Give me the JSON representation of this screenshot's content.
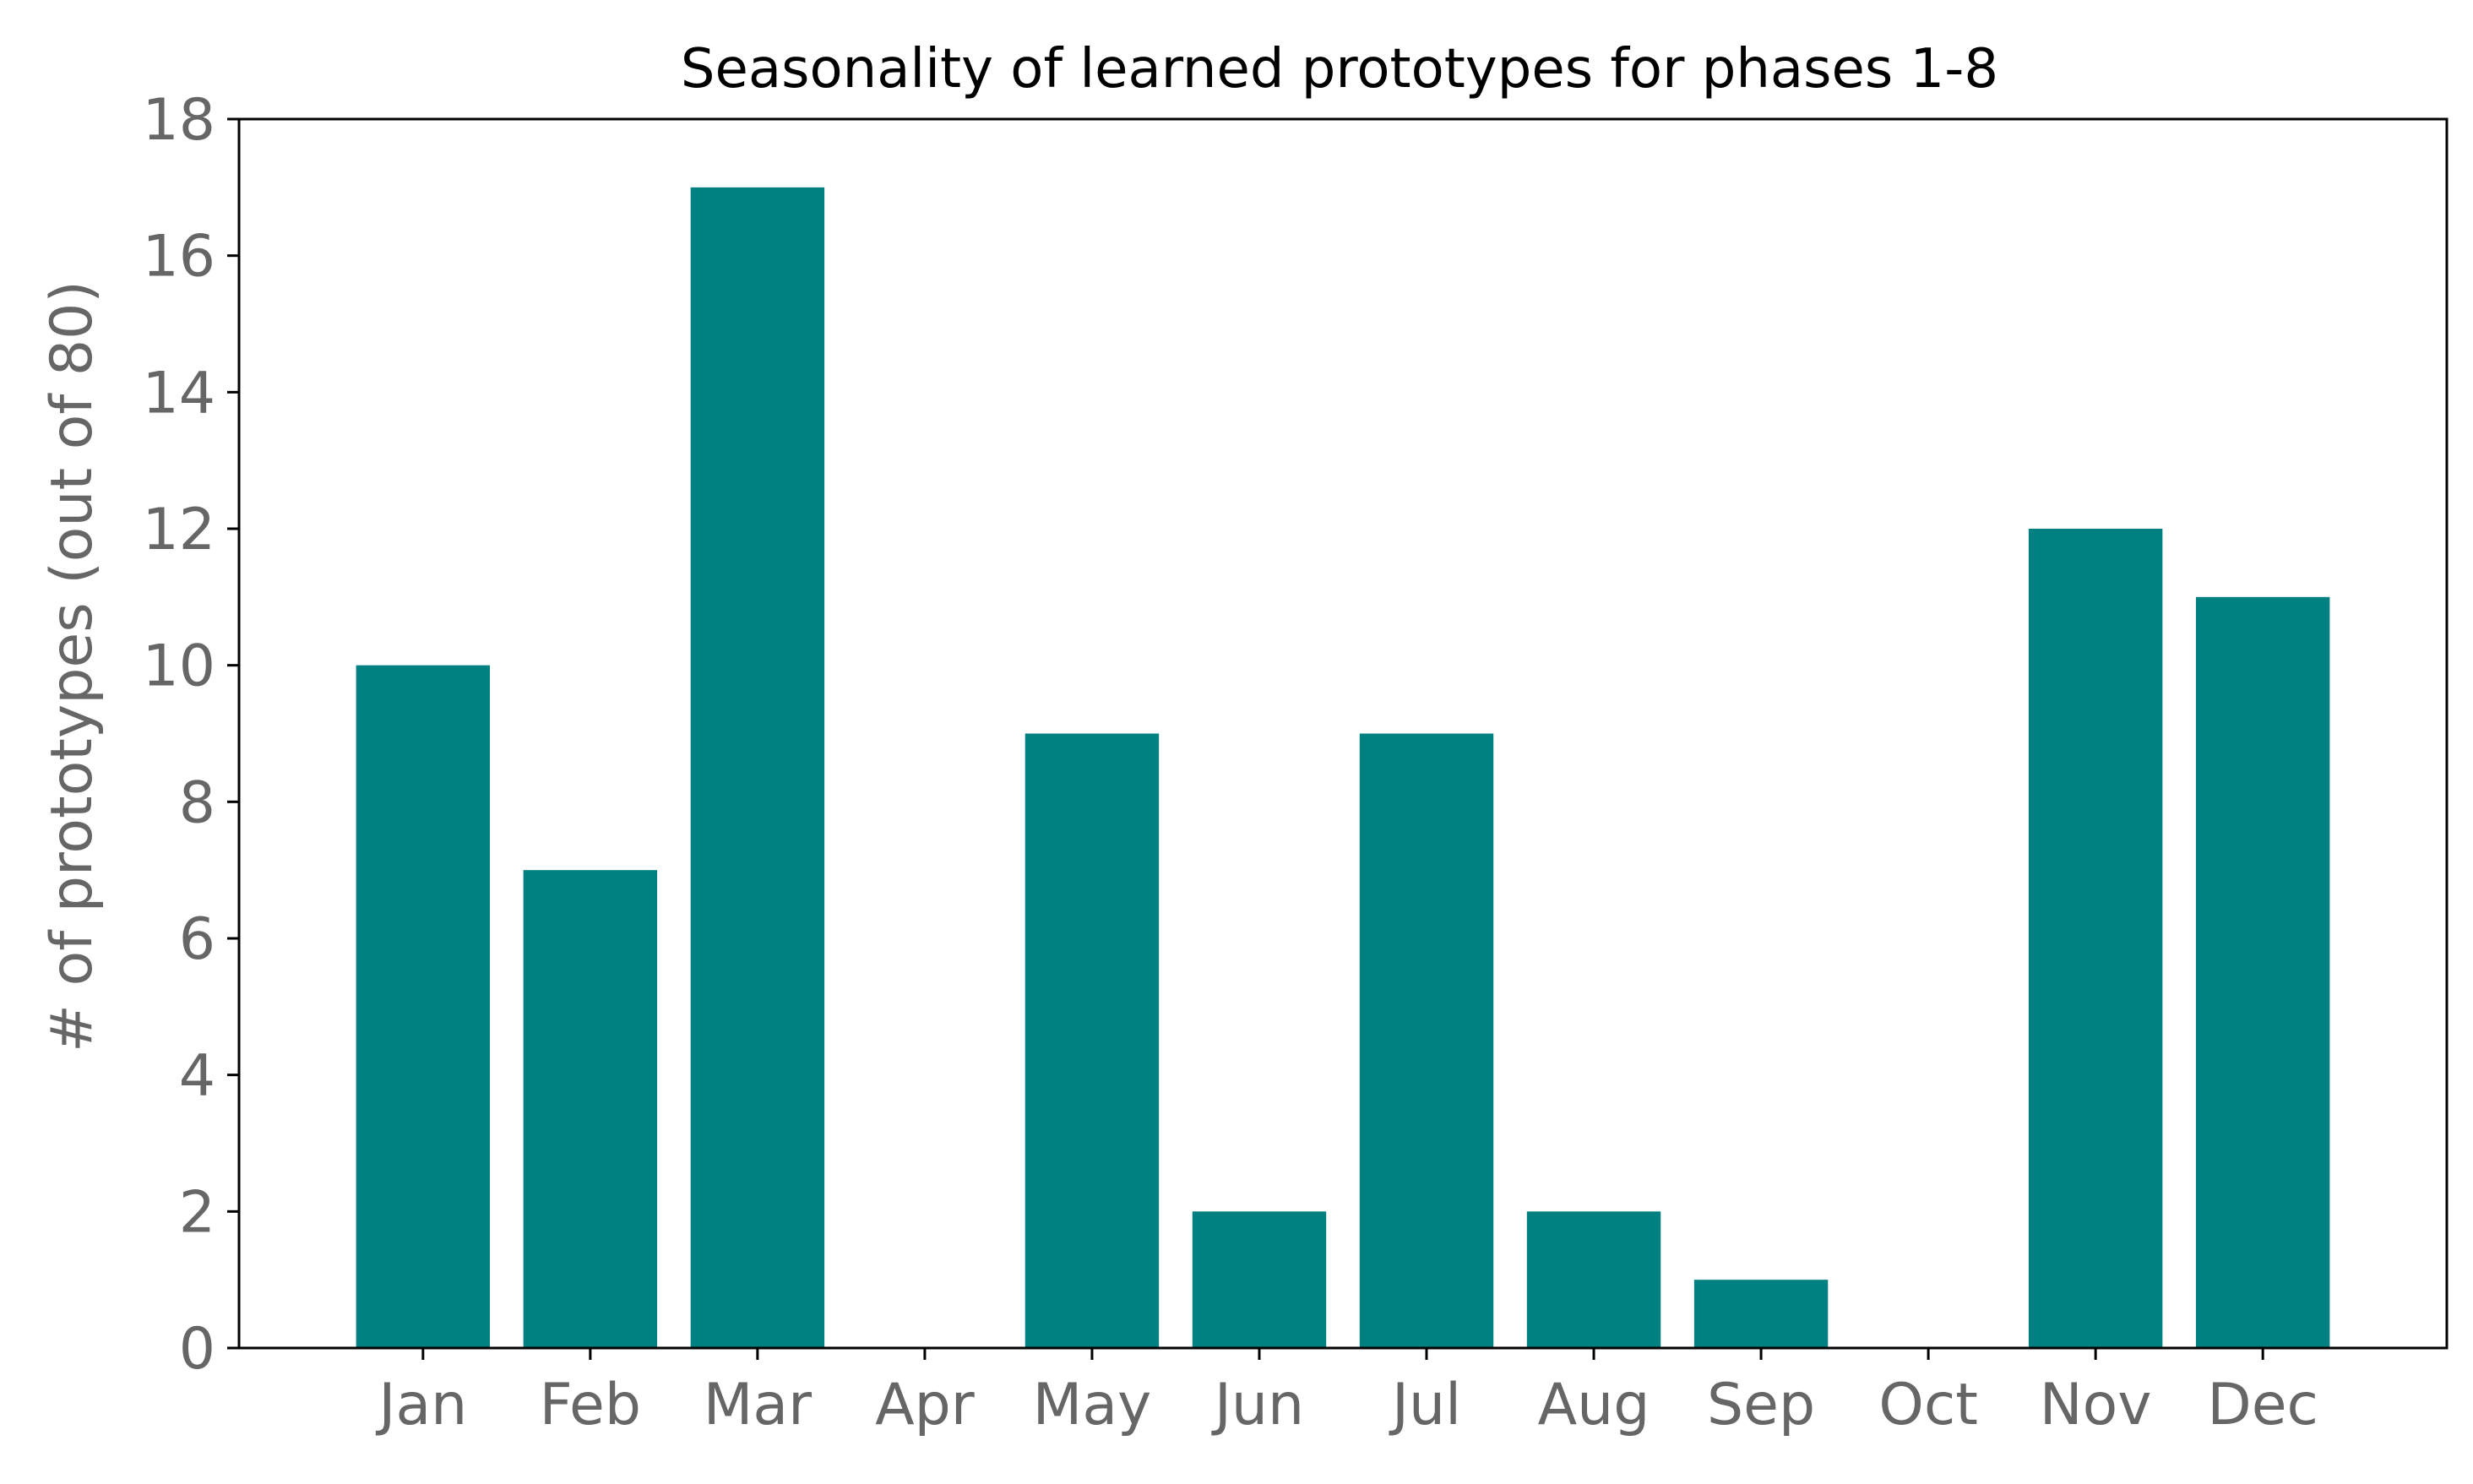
{
  "colors": {
    "bar": "#008080",
    "axis": "#000000",
    "tick_text": "#666666",
    "title_text": "#000000",
    "background": "#ffffff"
  },
  "chart_data": {
    "type": "bar",
    "title": "Seasonality of learned prototypes for phases 1-8",
    "xlabel": "",
    "ylabel": "# of prototypes (out of 80)",
    "categories": [
      "Jan",
      "Feb",
      "Mar",
      "Apr",
      "May",
      "Jun",
      "Jul",
      "Aug",
      "Sep",
      "Oct",
      "Nov",
      "Dec"
    ],
    "values": [
      10,
      7,
      17,
      0,
      9,
      2,
      9,
      2,
      1,
      0,
      12,
      11
    ],
    "ylim": [
      0,
      18
    ],
    "yticks": [
      0,
      2,
      4,
      6,
      8,
      10,
      12,
      14,
      16,
      18
    ],
    "ytick_labels": [
      "0",
      "2",
      "4",
      "6",
      "8",
      "10",
      "12",
      "14",
      "16",
      "18"
    ],
    "grid": false,
    "legend": "none"
  }
}
